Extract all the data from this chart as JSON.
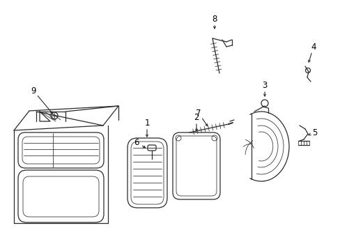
{
  "background_color": "#ffffff",
  "line_color": "#2a2a2a",
  "label_color": "#000000",
  "fig_width": 4.89,
  "fig_height": 3.6,
  "dpi": 100,
  "font_size": 8.5
}
